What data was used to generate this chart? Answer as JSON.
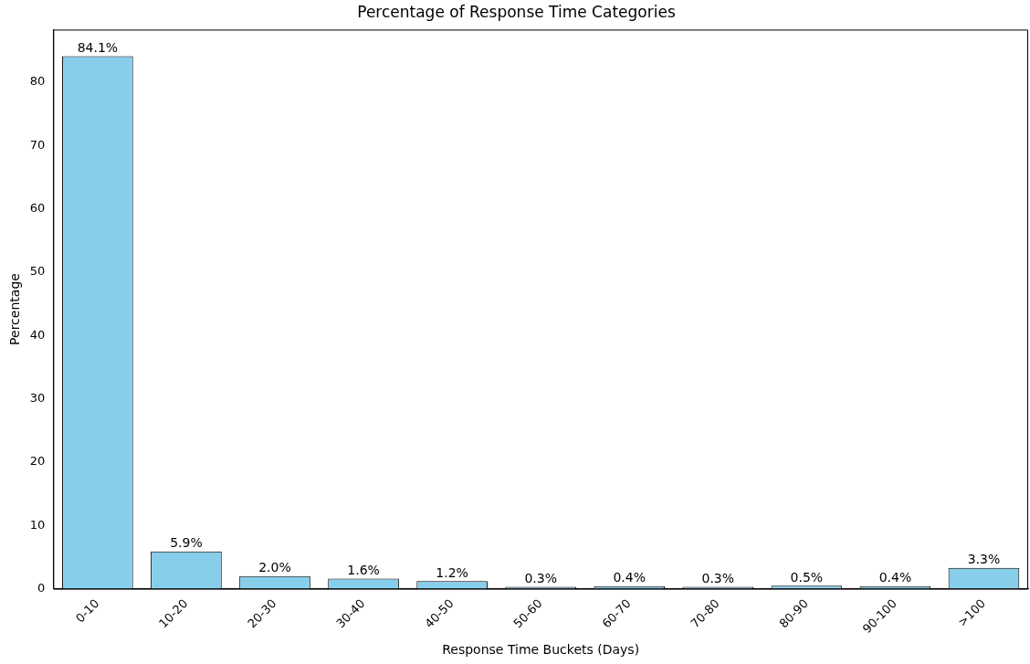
{
  "chart_data": {
    "type": "bar",
    "title": "Percentage of Response Time Categories",
    "xlabel": "Response Time Buckets (Days)",
    "ylabel": "Percentage",
    "categories": [
      "0-10",
      "10-20",
      "20-30",
      "30-40",
      "40-50",
      "50-60",
      "60-70",
      "70-80",
      "80-90",
      "90-100",
      ">100"
    ],
    "values": [
      84.1,
      5.9,
      2.0,
      1.6,
      1.2,
      0.3,
      0.4,
      0.3,
      0.5,
      0.4,
      3.3
    ],
    "value_labels": [
      "84.1%",
      "5.9%",
      "2.0%",
      "1.6%",
      "1.2%",
      "0.3%",
      "0.4%",
      "0.3%",
      "0.5%",
      "0.4%",
      "3.3%"
    ],
    "color": "#87ceeb",
    "ylim": [
      0,
      88.3
    ],
    "yticks": [
      0,
      10,
      20,
      30,
      40,
      50,
      60,
      70,
      80
    ],
    "grid": false,
    "legend": false
  }
}
